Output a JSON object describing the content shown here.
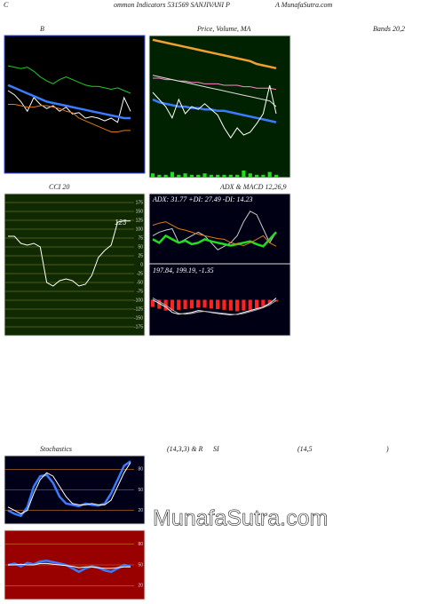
{
  "header": [
    "C",
    "ommon  Indicators 531569 SANJIVANI P",
    "A MunafaSutra.com"
  ],
  "watermark": "MunafaSutra.com",
  "chart_data": [
    {
      "type": "line",
      "title": "B",
      "subtitle": "Bands 20,2",
      "ylim": [
        0,
        100
      ],
      "series": [
        {
          "name": "Upper",
          "color": "#22cc22",
          "values": [
            78,
            77,
            76,
            77,
            74,
            70,
            67,
            65,
            68,
            70,
            68,
            66,
            64,
            63,
            63,
            62,
            61,
            62,
            60,
            58
          ]
        },
        {
          "name": "Price",
          "color": "#ffffff",
          "values": [
            60,
            57,
            52,
            45,
            55,
            50,
            47,
            49,
            45,
            48,
            43,
            44,
            40,
            41,
            40,
            38,
            40,
            37,
            55,
            45
          ]
        },
        {
          "name": "Middle",
          "color": "#3a7bff",
          "values": [
            64,
            62,
            60,
            58,
            56,
            54,
            52,
            51,
            50,
            49,
            48,
            47,
            46,
            45,
            44,
            43,
            42,
            41,
            40,
            40
          ]
        },
        {
          "name": "Lower",
          "color": "#e07a10",
          "values": [
            50,
            50,
            49,
            48,
            48,
            49,
            49,
            48,
            47,
            45,
            44,
            40,
            38,
            36,
            34,
            32,
            30,
            30,
            31,
            31
          ]
        }
      ]
    },
    {
      "type": "line",
      "title": "Price, Volume, MA",
      "ylim": [
        0,
        100
      ],
      "y2lim": [
        0,
        100
      ],
      "series": [
        {
          "name": "MA long",
          "color": "#f0a030",
          "values": [
            97,
            96,
            95,
            94,
            93,
            92,
            91,
            90,
            89,
            88,
            87,
            86,
            85,
            84,
            83,
            82,
            80,
            79,
            78,
            77
          ]
        },
        {
          "name": "MA mid",
          "color": "#ff88cc",
          "values": [
            70,
            70,
            69,
            69,
            68,
            68,
            67,
            67,
            66,
            66,
            66,
            65,
            65,
            65,
            64,
            64,
            63,
            63,
            63,
            62
          ]
        },
        {
          "name": "MA short",
          "color": "#dddddd",
          "values": [
            72,
            71,
            70,
            69,
            68,
            67,
            66,
            65,
            64,
            63,
            62,
            61,
            60,
            59,
            58,
            57,
            56,
            55,
            54,
            50
          ]
        },
        {
          "name": "MA fast",
          "color": "#3a7bff",
          "values": [
            55,
            53,
            52,
            51,
            50,
            50,
            49,
            49,
            48,
            48,
            47,
            47,
            46,
            45,
            44,
            43,
            42,
            41,
            40,
            39
          ]
        },
        {
          "name": "Price",
          "color": "#ffffff",
          "values": [
            60,
            55,
            50,
            42,
            55,
            45,
            50,
            48,
            52,
            48,
            44,
            35,
            28,
            35,
            30,
            32,
            38,
            45,
            65,
            45
          ]
        },
        {
          "name": "Volume",
          "color": "#22dd22",
          "kind": "bar",
          "axis": "y2",
          "values": [
            3,
            2,
            2,
            4,
            2,
            3,
            2,
            2,
            3,
            2,
            2,
            2,
            2,
            2,
            5,
            3,
            2,
            2,
            4,
            2
          ]
        }
      ]
    },
    {
      "type": "line",
      "title": "CCI 20",
      "ylim": [
        -200,
        200
      ],
      "grid": true,
      "yticks": [
        175,
        150,
        125,
        100,
        75,
        50,
        25,
        0,
        -25,
        -50,
        -75,
        -100,
        -125,
        -150,
        -175
      ],
      "series": [
        {
          "name": "CCI",
          "color": "#ffffff",
          "values": [
            80,
            80,
            60,
            55,
            60,
            50,
            -50,
            -60,
            -45,
            -40,
            -45,
            -60,
            -55,
            -30,
            20,
            40,
            55,
            120,
            123,
            123
          ]
        }
      ]
    },
    {
      "type": "line",
      "title": "ADX  & MACD 12,26,9",
      "annotations": [
        "ADX: 31.77 +DI: 27.49 -DI: 14.23"
      ],
      "ylim": [
        0,
        100
      ],
      "series": [
        {
          "name": "ADX",
          "color": "#cccccc",
          "values": [
            40,
            45,
            48,
            50,
            30,
            35,
            40,
            45,
            40,
            30,
            20,
            25,
            30,
            40,
            60,
            75,
            70,
            50,
            30,
            45
          ]
        },
        {
          "name": "+DI",
          "color": "#22dd22",
          "values": [
            35,
            30,
            40,
            35,
            30,
            33,
            28,
            30,
            35,
            32,
            30,
            28,
            26,
            28,
            30,
            32,
            28,
            25,
            35,
            45
          ]
        },
        {
          "name": "-DI",
          "color": "#e07a10",
          "values": [
            55,
            58,
            60,
            55,
            50,
            48,
            45,
            42,
            40,
            38,
            36,
            35,
            30,
            28,
            26,
            30,
            35,
            40,
            30,
            25
          ]
        }
      ]
    },
    {
      "type": "line",
      "annotations": [
        "197.84, 199.19, -1.35"
      ],
      "ylim": [
        -100,
        100
      ],
      "series": [
        {
          "name": "Histogram",
          "color": "#ff2222",
          "kind": "bar",
          "values": [
            -20,
            -25,
            -30,
            -30,
            -28,
            -26,
            -24,
            -22,
            -22,
            -24,
            -26,
            -28,
            -30,
            -32,
            -30,
            -28,
            -24,
            -18,
            -10,
            -5
          ]
        },
        {
          "name": "MACD",
          "color": "#ffffff",
          "values": [
            0,
            -10,
            -20,
            -35,
            -40,
            -38,
            -35,
            -30,
            -32,
            -35,
            -38,
            -40,
            -42,
            -40,
            -35,
            -30,
            -25,
            -20,
            -10,
            5
          ]
        },
        {
          "name": "Signal",
          "color": "#aaaaaa",
          "values": [
            5,
            -5,
            -15,
            -28,
            -38,
            -40,
            -38,
            -34,
            -32,
            -34,
            -36,
            -38,
            -40,
            -41,
            -38,
            -33,
            -28,
            -22,
            -14,
            -2
          ]
        }
      ]
    },
    {
      "type": "line",
      "title": "Stochastics",
      "annotations": [
        "(14,3,3) & R",
        "SI",
        "(14,5",
        ")"
      ],
      "ylim": [
        0,
        100
      ],
      "grid": true,
      "yticks": [
        80,
        50,
        20
      ],
      "series": [
        {
          "name": "%K",
          "color": "#3a7bff",
          "values": [
            20,
            15,
            12,
            25,
            55,
            70,
            72,
            60,
            40,
            30,
            28,
            26,
            30,
            28,
            27,
            30,
            45,
            65,
            85,
            92
          ]
        },
        {
          "name": "%D",
          "color": "#ffffff",
          "values": [
            25,
            20,
            15,
            20,
            45,
            65,
            75,
            70,
            55,
            40,
            30,
            28,
            28,
            30,
            28,
            28,
            35,
            55,
            75,
            90
          ]
        }
      ]
    },
    {
      "type": "line",
      "ylim": [
        0,
        100
      ],
      "grid": true,
      "yticks": [
        80,
        50,
        20
      ],
      "series": [
        {
          "name": "RSI",
          "color": "#3a7bff",
          "values": [
            50,
            52,
            48,
            53,
            51,
            55,
            56,
            54,
            52,
            50,
            45,
            40,
            45,
            48,
            46,
            42,
            40,
            45,
            50,
            48
          ]
        },
        {
          "name": "MRSI",
          "color": "#ffffff",
          "values": [
            50,
            50,
            51,
            50,
            50,
            52,
            52,
            51,
            50,
            49,
            48,
            46,
            47,
            47,
            46,
            45,
            45,
            46,
            47,
            47
          ]
        }
      ]
    }
  ]
}
